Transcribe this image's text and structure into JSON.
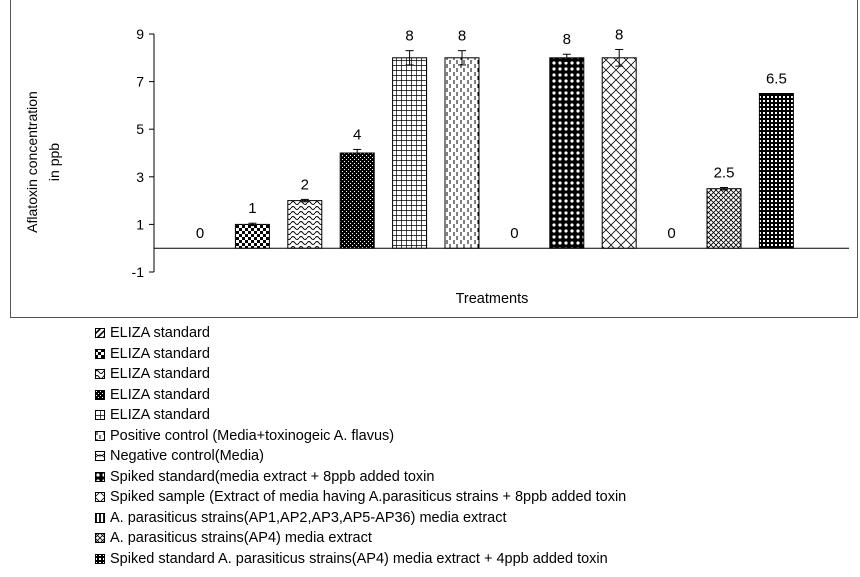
{
  "chart_data": {
    "type": "bar",
    "title": "",
    "xlabel": "Treatments",
    "ylabel": "Aflatoxin concentration in ppb",
    "ylabel_lines": [
      "Aflatoxin concentration",
      "in ppb"
    ],
    "ylim": [
      -1,
      9
    ],
    "yticks": [
      -1,
      1,
      3,
      5,
      7,
      9
    ],
    "grid": false,
    "legend_position": "bottom",
    "bars": [
      {
        "value": 0,
        "label": "0",
        "error": 0,
        "pattern": "diag-right"
      },
      {
        "value": 1,
        "label": "1",
        "error": 0.05,
        "pattern": "checker"
      },
      {
        "value": 2,
        "label": "2",
        "error": 0.05,
        "pattern": "wave"
      },
      {
        "value": 4,
        "label": "4",
        "error": 0.15,
        "pattern": "dense-dots"
      },
      {
        "value": 8,
        "label": "8",
        "error": 0.3,
        "pattern": "grid"
      },
      {
        "value": 8,
        "label": "8",
        "error": 0.3,
        "pattern": "dashed-vertical"
      },
      {
        "value": 0,
        "label": "0",
        "error": 0,
        "pattern": "zigzag"
      },
      {
        "value": 8,
        "label": "8",
        "error": 0.15,
        "pattern": "large-dots"
      },
      {
        "value": 8,
        "label": "8",
        "error": 0.35,
        "pattern": "weave"
      },
      {
        "value": 0,
        "label": "0",
        "error": 0,
        "pattern": "vertical"
      },
      {
        "value": 2.5,
        "label": "2.5",
        "error": 0.05,
        "pattern": "diag-cross"
      },
      {
        "value": 6.5,
        "label": "6.5",
        "error": 0,
        "pattern": "dots-dark"
      }
    ]
  },
  "legend": [
    {
      "label": "ELIZA standard",
      "pattern": "diag-right"
    },
    {
      "label": "ELIZA standard",
      "pattern": "checker"
    },
    {
      "label": "ELIZA standard",
      "pattern": "wave"
    },
    {
      "label": "ELIZA standard",
      "pattern": "dense-dots"
    },
    {
      "label": "ELIZA standard",
      "pattern": "grid"
    },
    {
      "label": "Positive control (Media+toxinogeic A. flavus)",
      "pattern": "dashed-vertical"
    },
    {
      "label": "Negative control(Media)",
      "pattern": "zigzag"
    },
    {
      "label": "Spiked standard(media extract + 8ppb added toxin",
      "pattern": "large-dots"
    },
    {
      "label": "Spiked sample (Extract of media having A.parasiticus strains + 8ppb added toxin",
      "pattern": "weave"
    },
    {
      "label": "A. parasiticus strains(AP1,AP2,AP3,AP5-AP36) media extract",
      "pattern": "vertical"
    },
    {
      "label": "A. parasiticus strains(AP4) media extract",
      "pattern": "diag-cross"
    },
    {
      "label": "Spiked standard A. parasiticus strains(AP4) media extract + 4ppb added toxin",
      "pattern": "dots-dark"
    }
  ]
}
